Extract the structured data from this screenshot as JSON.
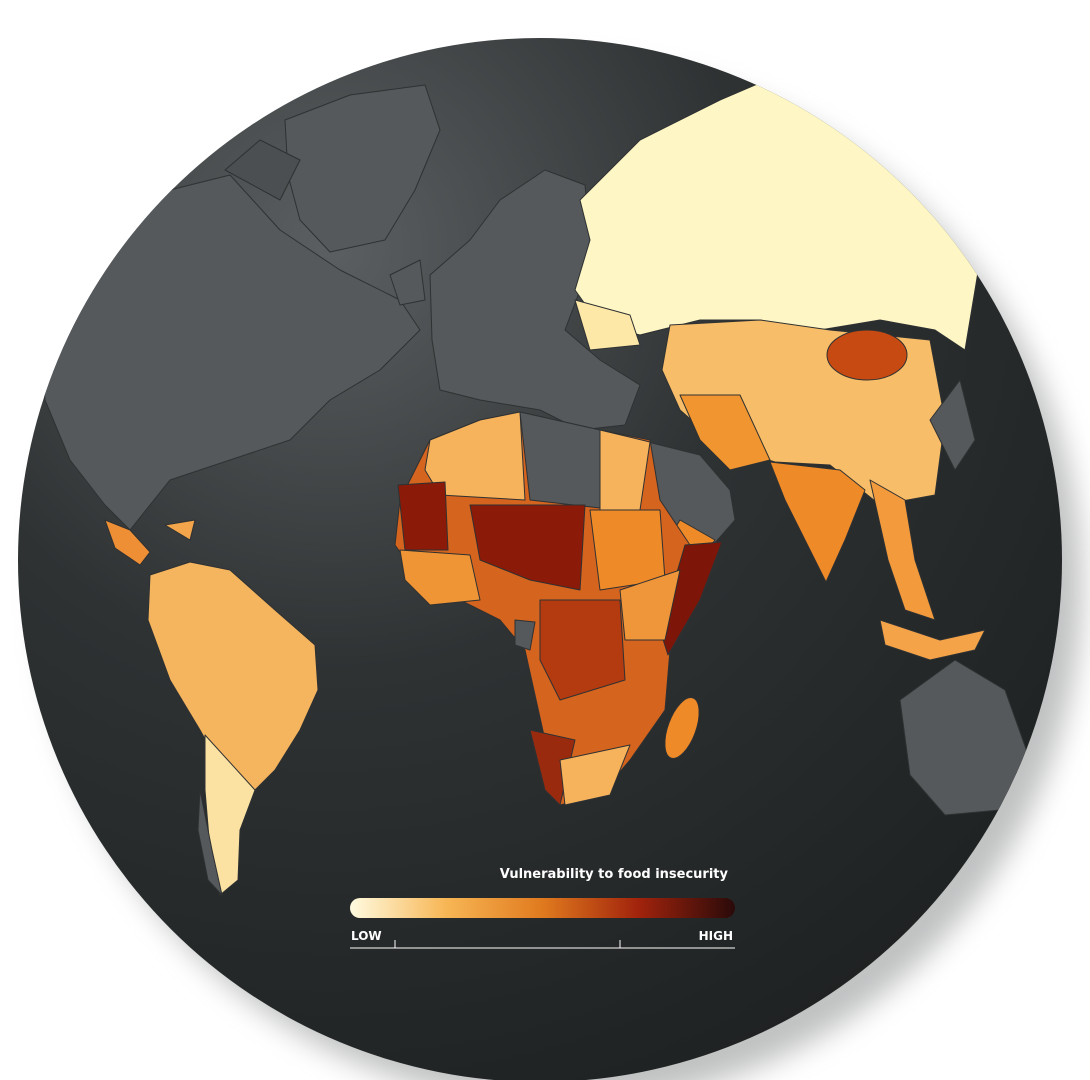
{
  "legend": {
    "title": "Vulnerability to food insecurity",
    "low_label": "LOW",
    "high_label": "HIGH"
  }
}
